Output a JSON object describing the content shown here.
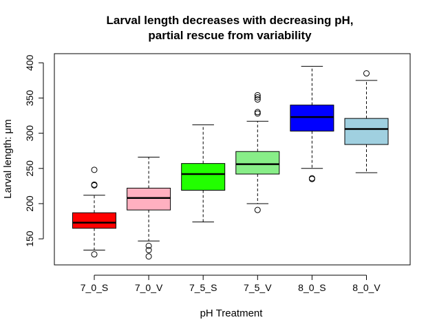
{
  "chart_data": {
    "type": "boxplot",
    "title_line1": "Larval length decreases with decreasing pH,",
    "title_line2": "partial rescue from variability",
    "xlabel": "pH Treatment",
    "ylabel": "Larval length: μm",
    "ylim": [
      113,
      413
    ],
    "yticks": [
      150,
      200,
      250,
      300,
      350,
      400
    ],
    "grid": false,
    "legend": "none",
    "boxes": [
      {
        "category": "7_0_S",
        "color": "#ff0000",
        "whisker_low": 134,
        "q1": 165,
        "median": 173,
        "q3": 187,
        "whisker_high": 212,
        "outliers": [
          128,
          226,
          227,
          248
        ]
      },
      {
        "category": "7_0_V",
        "color": "#ffb0c0",
        "whisker_low": 147,
        "q1": 191,
        "median": 208,
        "q3": 222,
        "whisker_high": 266,
        "outliers": [
          125,
          134,
          140
        ]
      },
      {
        "category": "7_5_S",
        "color": "#22ff00",
        "whisker_low": 174,
        "q1": 219,
        "median": 242,
        "q3": 257,
        "whisker_high": 312,
        "outliers": []
      },
      {
        "category": "7_5_V",
        "color": "#88ee88",
        "whisker_low": 200,
        "q1": 242,
        "median": 256,
        "q3": 274,
        "whisker_high": 317,
        "outliers": [
          191,
          328,
          330,
          348,
          351,
          354
        ]
      },
      {
        "category": "8_0_S",
        "color": "#0000ff",
        "whisker_low": 250,
        "q1": 303,
        "median": 323,
        "q3": 340,
        "whisker_high": 395,
        "outliers": [
          235,
          236
        ]
      },
      {
        "category": "8_0_V",
        "color": "#a0d0e0",
        "whisker_low": 244,
        "q1": 284,
        "median": 306,
        "q3": 321,
        "whisker_high": 375,
        "outliers": [
          385
        ]
      }
    ]
  }
}
